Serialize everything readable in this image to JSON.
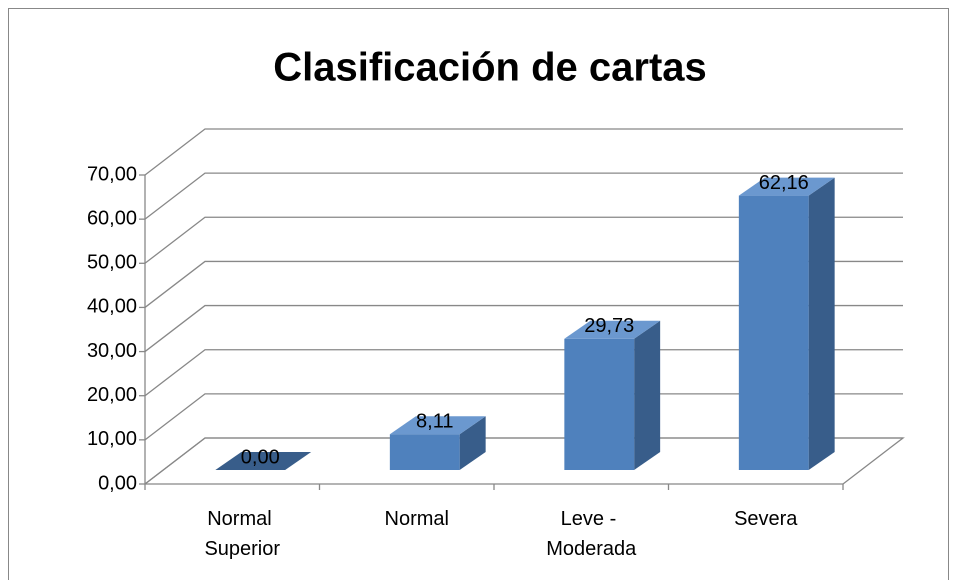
{
  "chart_data": {
    "type": "bar3d",
    "title": "Clasificación de cartas",
    "categories": [
      "Normal Superior",
      "Normal",
      "Leve - Moderada",
      "Severa"
    ],
    "values": [
      0,
      8.11,
      29.73,
      62.16
    ],
    "value_labels": [
      "0,00",
      "8,11",
      "29,73",
      "62,16"
    ],
    "color": "#4f81bd",
    "ylim": [
      0,
      70
    ],
    "yticks": [
      {
        "value": 0,
        "label": "0,00"
      },
      {
        "value": 10,
        "label": "10,00"
      },
      {
        "value": 20,
        "label": "20,00"
      },
      {
        "value": 30,
        "label": "30,00"
      },
      {
        "value": 40,
        "label": "40,00"
      },
      {
        "value": 50,
        "label": "50,00"
      },
      {
        "value": 60,
        "label": "60,00"
      },
      {
        "value": 70,
        "label": "70,00"
      }
    ],
    "grid": true
  }
}
